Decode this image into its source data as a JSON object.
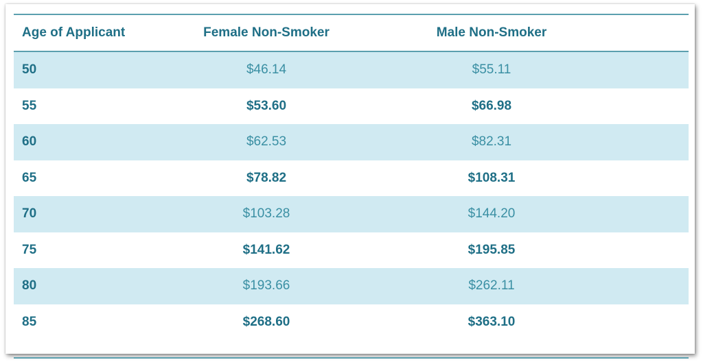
{
  "table": {
    "headers": [
      "Age of Applicant",
      "Female Non-Smoker",
      "Male Non-Smoker"
    ],
    "rows": [
      {
        "age": "50",
        "female": "$46.14",
        "male": "$55.11"
      },
      {
        "age": "55",
        "female": "$53.60",
        "male": "$66.98"
      },
      {
        "age": "60",
        "female": "$62.53",
        "male": "$82.31"
      },
      {
        "age": "65",
        "female": "$78.82",
        "male": "$108.31"
      },
      {
        "age": "70",
        "female": "$103.28",
        "male": "$144.20"
      },
      {
        "age": "75",
        "female": "$141.62",
        "male": "$195.85"
      },
      {
        "age": "80",
        "female": "$193.66",
        "male": "$262.11"
      },
      {
        "age": "85",
        "female": "$268.60",
        "male": "$363.10"
      }
    ]
  },
  "colors": {
    "header_text": "#1f6f86",
    "row_shade": "#d0eaf2",
    "rule": "#5b9fae"
  }
}
